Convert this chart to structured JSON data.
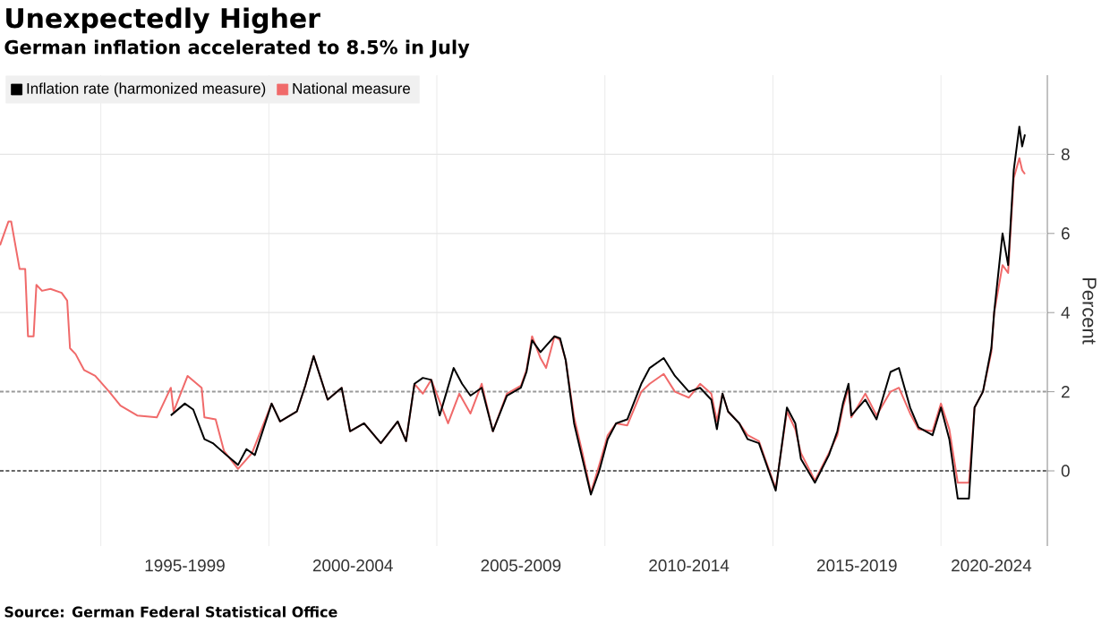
{
  "chart_data": {
    "type": "line",
    "title": "Unexpectedly Higher",
    "subtitle": "German inflation accelerated to 8.5% in July",
    "ylabel": "Percent",
    "xlim": [
      "1992-01",
      "2023-03"
    ],
    "ylim": [
      -1.9,
      10
    ],
    "xticks": [
      {
        "value": "1995-01",
        "label": null
      },
      {
        "value": "1997-07",
        "label": "1995-1999"
      },
      {
        "value": "2000-01",
        "label": null
      },
      {
        "value": "2002-07",
        "label": "2000-2004"
      },
      {
        "value": "2005-01",
        "label": null
      },
      {
        "value": "2007-07",
        "label": "2005-2009"
      },
      {
        "value": "2010-01",
        "label": null
      },
      {
        "value": "2012-07",
        "label": "2010-2014"
      },
      {
        "value": "2015-01",
        "label": null
      },
      {
        "value": "2017-07",
        "label": "2015-2019"
      },
      {
        "value": "2020-01",
        "label": null
      },
      {
        "value": "2021-07",
        "label": "2020-2024"
      }
    ],
    "yticks": [
      0,
      2,
      4,
      6,
      8
    ],
    "grid": true,
    "legend": "top left",
    "ref_lines": [
      {
        "axis": "y",
        "value": 0,
        "label": null,
        "color": "#666666",
        "line_style": "dotted"
      },
      {
        "axis": "y",
        "value": 2,
        "label": null,
        "color": "#999999",
        "line_style": "dotted"
      }
    ],
    "series": [
      {
        "name": "National measure",
        "color": "#f06a6a",
        "x": [
          "1992-01",
          "1992-04",
          "1992-05",
          "1992-08",
          "1992-10",
          "1992-11",
          "1993-01",
          "1993-02",
          "1993-04",
          "1993-07",
          "1993-11",
          "1994-01",
          "1994-02",
          "1994-04",
          "1994-07",
          "1994-11",
          "1995-04",
          "1995-08",
          "1996-02",
          "1996-09",
          "1997-02",
          "1997-03",
          "1997-08",
          "1998-01",
          "1998-02",
          "1998-06",
          "1998-09",
          "1999-02",
          "1999-07",
          "2000-02",
          "2000-05",
          "2000-11",
          "2001-02",
          "2001-05",
          "2001-10",
          "2002-03",
          "2002-06",
          "2002-11",
          "2003-05",
          "2003-11",
          "2004-02",
          "2004-05",
          "2004-08",
          "2004-11",
          "2005-05",
          "2005-09",
          "2006-01",
          "2006-05",
          "2006-09",
          "2007-02",
          "2007-07",
          "2007-09",
          "2007-11",
          "2008-02",
          "2008-04",
          "2008-07",
          "2008-09",
          "2008-11",
          "2009-02",
          "2009-05",
          "2009-08",
          "2009-11",
          "2010-02",
          "2010-05",
          "2010-09",
          "2011-02",
          "2011-05",
          "2011-10",
          "2012-02",
          "2012-07",
          "2012-11",
          "2013-03",
          "2013-05",
          "2013-07",
          "2013-09",
          "2014-01",
          "2014-04",
          "2014-08",
          "2015-02",
          "2015-06",
          "2015-09",
          "2015-11",
          "2016-04",
          "2016-09",
          "2016-12",
          "2017-02",
          "2017-04",
          "2017-05",
          "2017-10",
          "2018-02",
          "2018-07",
          "2018-10",
          "2019-02",
          "2019-05",
          "2019-10",
          "2020-01",
          "2020-04",
          "2020-07",
          "2020-11",
          "2021-01",
          "2021-04",
          "2021-07",
          "2021-08",
          "2021-11",
          "2022-01",
          "2022-03",
          "2022-05",
          "2022-06",
          "2022-07"
        ],
        "values": [
          5.7,
          6.3,
          6.3,
          5.1,
          5.1,
          3.4,
          3.4,
          4.7,
          4.55,
          4.6,
          4.5,
          4.3,
          3.1,
          2.95,
          2.55,
          2.4,
          2.0,
          1.65,
          1.4,
          1.35,
          2.1,
          1.5,
          2.4,
          2.1,
          1.35,
          1.3,
          0.5,
          0.05,
          0.45,
          1.7,
          1.25,
          1.5,
          2.15,
          2.9,
          1.8,
          2.1,
          1.0,
          1.2,
          0.7,
          1.25,
          0.75,
          2.2,
          1.95,
          2.3,
          1.2,
          1.95,
          1.45,
          2.2,
          1.0,
          1.95,
          2.15,
          2.55,
          3.4,
          2.85,
          2.6,
          3.4,
          3.3,
          2.8,
          1.35,
          0.45,
          -0.55,
          0.15,
          0.9,
          1.2,
          1.15,
          2.0,
          2.2,
          2.45,
          2.0,
          1.85,
          2.2,
          1.95,
          1.25,
          1.95,
          1.5,
          1.2,
          0.9,
          0.75,
          -0.45,
          1.5,
          1.05,
          0.45,
          -0.25,
          0.45,
          0.9,
          1.6,
          2.1,
          1.35,
          1.95,
          1.4,
          2.0,
          2.1,
          1.45,
          1.05,
          1.0,
          1.7,
          1.05,
          -0.3,
          -0.3,
          1.6,
          2.0,
          3.0,
          4.0,
          5.2,
          5.0,
          7.4,
          7.9,
          7.6,
          7.5
        ]
      },
      {
        "name": "Inflation rate (harmonized measure)",
        "color": "#000000",
        "x": [
          "1997-02",
          "1997-07",
          "1997-10",
          "1998-02",
          "1998-05",
          "1998-09",
          "1999-02",
          "1999-05",
          "1999-08",
          "2000-02",
          "2000-05",
          "2000-11",
          "2001-02",
          "2001-05",
          "2001-10",
          "2002-03",
          "2002-06",
          "2002-11",
          "2003-05",
          "2003-11",
          "2004-02",
          "2004-05",
          "2004-08",
          "2004-11",
          "2005-02",
          "2005-07",
          "2005-10",
          "2006-01",
          "2006-05",
          "2006-09",
          "2007-02",
          "2007-07",
          "2007-09",
          "2007-11",
          "2008-02",
          "2008-07",
          "2008-09",
          "2008-11",
          "2009-02",
          "2009-05",
          "2009-08",
          "2009-11",
          "2010-02",
          "2010-05",
          "2010-09",
          "2011-02",
          "2011-05",
          "2011-10",
          "2012-02",
          "2012-07",
          "2012-11",
          "2013-03",
          "2013-05",
          "2013-07",
          "2013-09",
          "2014-01",
          "2014-04",
          "2014-08",
          "2015-02",
          "2015-06",
          "2015-09",
          "2015-11",
          "2016-04",
          "2016-09",
          "2016-12",
          "2017-02",
          "2017-04",
          "2017-05",
          "2017-10",
          "2018-02",
          "2018-07",
          "2018-10",
          "2019-02",
          "2019-05",
          "2019-10",
          "2020-01",
          "2020-04",
          "2020-07",
          "2020-11",
          "2021-01",
          "2021-04",
          "2021-07",
          "2021-08",
          "2021-11",
          "2022-01",
          "2022-03",
          "2022-05",
          "2022-06",
          "2022-07"
        ],
        "values": [
          1.4,
          1.7,
          1.55,
          0.8,
          0.7,
          0.45,
          0.15,
          0.55,
          0.4,
          1.7,
          1.25,
          1.5,
          2.15,
          2.9,
          1.8,
          2.1,
          1.0,
          1.2,
          0.7,
          1.25,
          0.75,
          2.2,
          2.35,
          2.3,
          1.4,
          2.6,
          2.2,
          1.9,
          2.1,
          1.0,
          1.9,
          2.1,
          2.5,
          3.3,
          3.0,
          3.4,
          3.35,
          2.8,
          1.2,
          0.3,
          -0.6,
          0.0,
          0.8,
          1.2,
          1.3,
          2.2,
          2.6,
          2.85,
          2.4,
          2.0,
          2.1,
          1.8,
          1.05,
          1.95,
          1.5,
          1.2,
          0.8,
          0.7,
          -0.5,
          1.6,
          1.2,
          0.3,
          -0.3,
          0.4,
          1.0,
          1.7,
          2.2,
          1.4,
          1.8,
          1.3,
          2.5,
          2.6,
          1.6,
          1.1,
          0.9,
          1.6,
          0.8,
          -0.7,
          -0.7,
          1.6,
          2.0,
          3.1,
          4.0,
          6.0,
          5.2,
          7.6,
          8.7,
          8.2,
          8.5
        ]
      }
    ],
    "annotations": [
      "Source: German Federal Statistical Office"
    ]
  }
}
